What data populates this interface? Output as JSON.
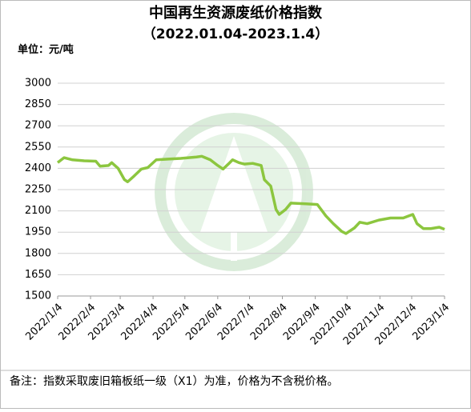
{
  "chart_data": {
    "type": "line",
    "title": "中国再生资源废纸价格指数",
    "subtitle": "（2022.01.04-2023.1.4）",
    "unit": "单位：元/吨",
    "note": "备注：指数采取废旧箱板纸一级（X1）为准，价格为不含税价格。",
    "x": [
      0,
      6,
      14,
      25,
      36,
      40,
      48,
      51,
      57,
      63,
      66,
      72,
      79,
      85,
      93,
      104,
      116,
      131,
      136,
      144,
      151,
      156,
      161,
      165,
      171,
      176,
      184,
      192,
      195,
      201,
      206,
      209,
      215,
      220,
      234,
      245,
      253,
      260,
      268,
      272,
      280,
      285,
      292,
      303,
      314,
      326,
      335,
      339,
      345,
      352,
      360,
      365
    ],
    "series": [
      {
        "color": "#8cc63f",
        "values": [
          2440,
          2475,
          2460,
          2453,
          2450,
          2415,
          2420,
          2440,
          2400,
          2320,
          2305,
          2345,
          2395,
          2405,
          2460,
          2465,
          2470,
          2480,
          2485,
          2460,
          2420,
          2395,
          2430,
          2460,
          2440,
          2430,
          2435,
          2420,
          2320,
          2275,
          2110,
          2075,
          2110,
          2155,
          2150,
          2145,
          2065,
          2010,
          1955,
          1940,
          1980,
          2020,
          2010,
          2035,
          2050,
          2050,
          2075,
          2010,
          1975,
          1975,
          1985,
          1970
        ]
      }
    ],
    "xlim": [
      0,
      365
    ],
    "xticks": [
      {
        "value": 0,
        "label": "2022/1/4"
      },
      {
        "value": 31,
        "label": "2022/2/4"
      },
      {
        "value": 59,
        "label": "2022/3/4"
      },
      {
        "value": 90,
        "label": "2022/4/4"
      },
      {
        "value": 120,
        "label": "2022/5/4"
      },
      {
        "value": 151,
        "label": "2022/6/4"
      },
      {
        "value": 181,
        "label": "2022/7/4"
      },
      {
        "value": 212,
        "label": "2022/8/4"
      },
      {
        "value": 243,
        "label": "2022/9/4"
      },
      {
        "value": 273,
        "label": "2022/10/4"
      },
      {
        "value": 304,
        "label": "2022/11/4"
      },
      {
        "value": 334,
        "label": "2022/12/4"
      },
      {
        "value": 365,
        "label": "2023/1/4"
      }
    ],
    "ylim": [
      1500,
      3000
    ],
    "yticks": [
      1500,
      1650,
      1800,
      1950,
      2100,
      2250,
      2400,
      2550,
      2700,
      2850,
      3000
    ],
    "grid": true
  }
}
